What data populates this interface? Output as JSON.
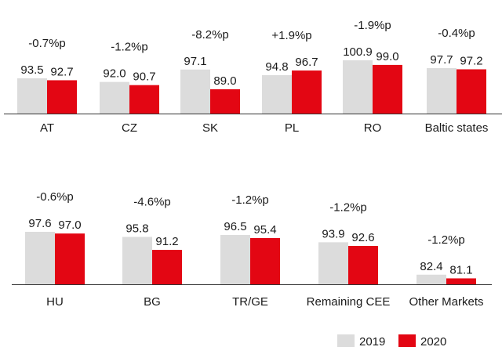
{
  "colors": {
    "y2019": "#dcdcdc",
    "y2020": "#e30613",
    "baseline": "#333333"
  },
  "legend": {
    "labels": [
      "2019",
      "2020"
    ]
  },
  "chart_data": {
    "type": "bar",
    "title": "",
    "series": [
      {
        "name": "2019"
      },
      {
        "name": "2020"
      }
    ],
    "panels": [
      {
        "groups": [
          {
            "category": "AT",
            "v2019": 93.5,
            "v2020": 92.7,
            "change": "-0.7%p",
            "l2019": "93.5",
            "l2020": "92.7"
          },
          {
            "category": "CZ",
            "v2019": 92.0,
            "v2020": 90.7,
            "change": "-1.2%p",
            "l2019": "92.0",
            "l2020": "90.7"
          },
          {
            "category": "SK",
            "v2019": 97.1,
            "v2020": 89.0,
            "change": "-8.2%p",
            "l2019": "97.1",
            "l2020": "89.0"
          },
          {
            "category": "PL",
            "v2019": 94.8,
            "v2020": 96.7,
            "change": "+1.9%p",
            "l2019": "94.8",
            "l2020": "96.7"
          },
          {
            "category": "RO",
            "v2019": 100.9,
            "v2020": 99.0,
            "change": "-1.9%p",
            "l2019": "100.9",
            "l2020": "99.0"
          },
          {
            "category": "Baltic states",
            "v2019": 97.7,
            "v2020": 97.2,
            "change": "-0.4%p",
            "l2019": "97.7",
            "l2020": "97.2"
          }
        ]
      },
      {
        "groups": [
          {
            "category": "HU",
            "v2019": 97.6,
            "v2020": 97.0,
            "change": "-0.6%p",
            "l2019": "97.6",
            "l2020": "97.0"
          },
          {
            "category": "BG",
            "v2019": 95.8,
            "v2020": 91.2,
            "change": "-4.6%p",
            "l2019": "95.8",
            "l2020": "91.2"
          },
          {
            "category": "TR/GE",
            "v2019": 96.5,
            "v2020": 95.4,
            "change": "-1.2%p",
            "l2019": "96.5",
            "l2020": "95.4"
          },
          {
            "category": "Remaining CEE",
            "v2019": 93.9,
            "v2020": 92.6,
            "change": "-1.2%p",
            "l2019": "93.9",
            "l2020": "92.6"
          },
          {
            "category": "Other Markets",
            "v2019": 82.4,
            "v2020": 81.1,
            "change": "-1.2%p",
            "l2019": "82.4",
            "l2020": "81.1"
          }
        ]
      }
    ]
  }
}
